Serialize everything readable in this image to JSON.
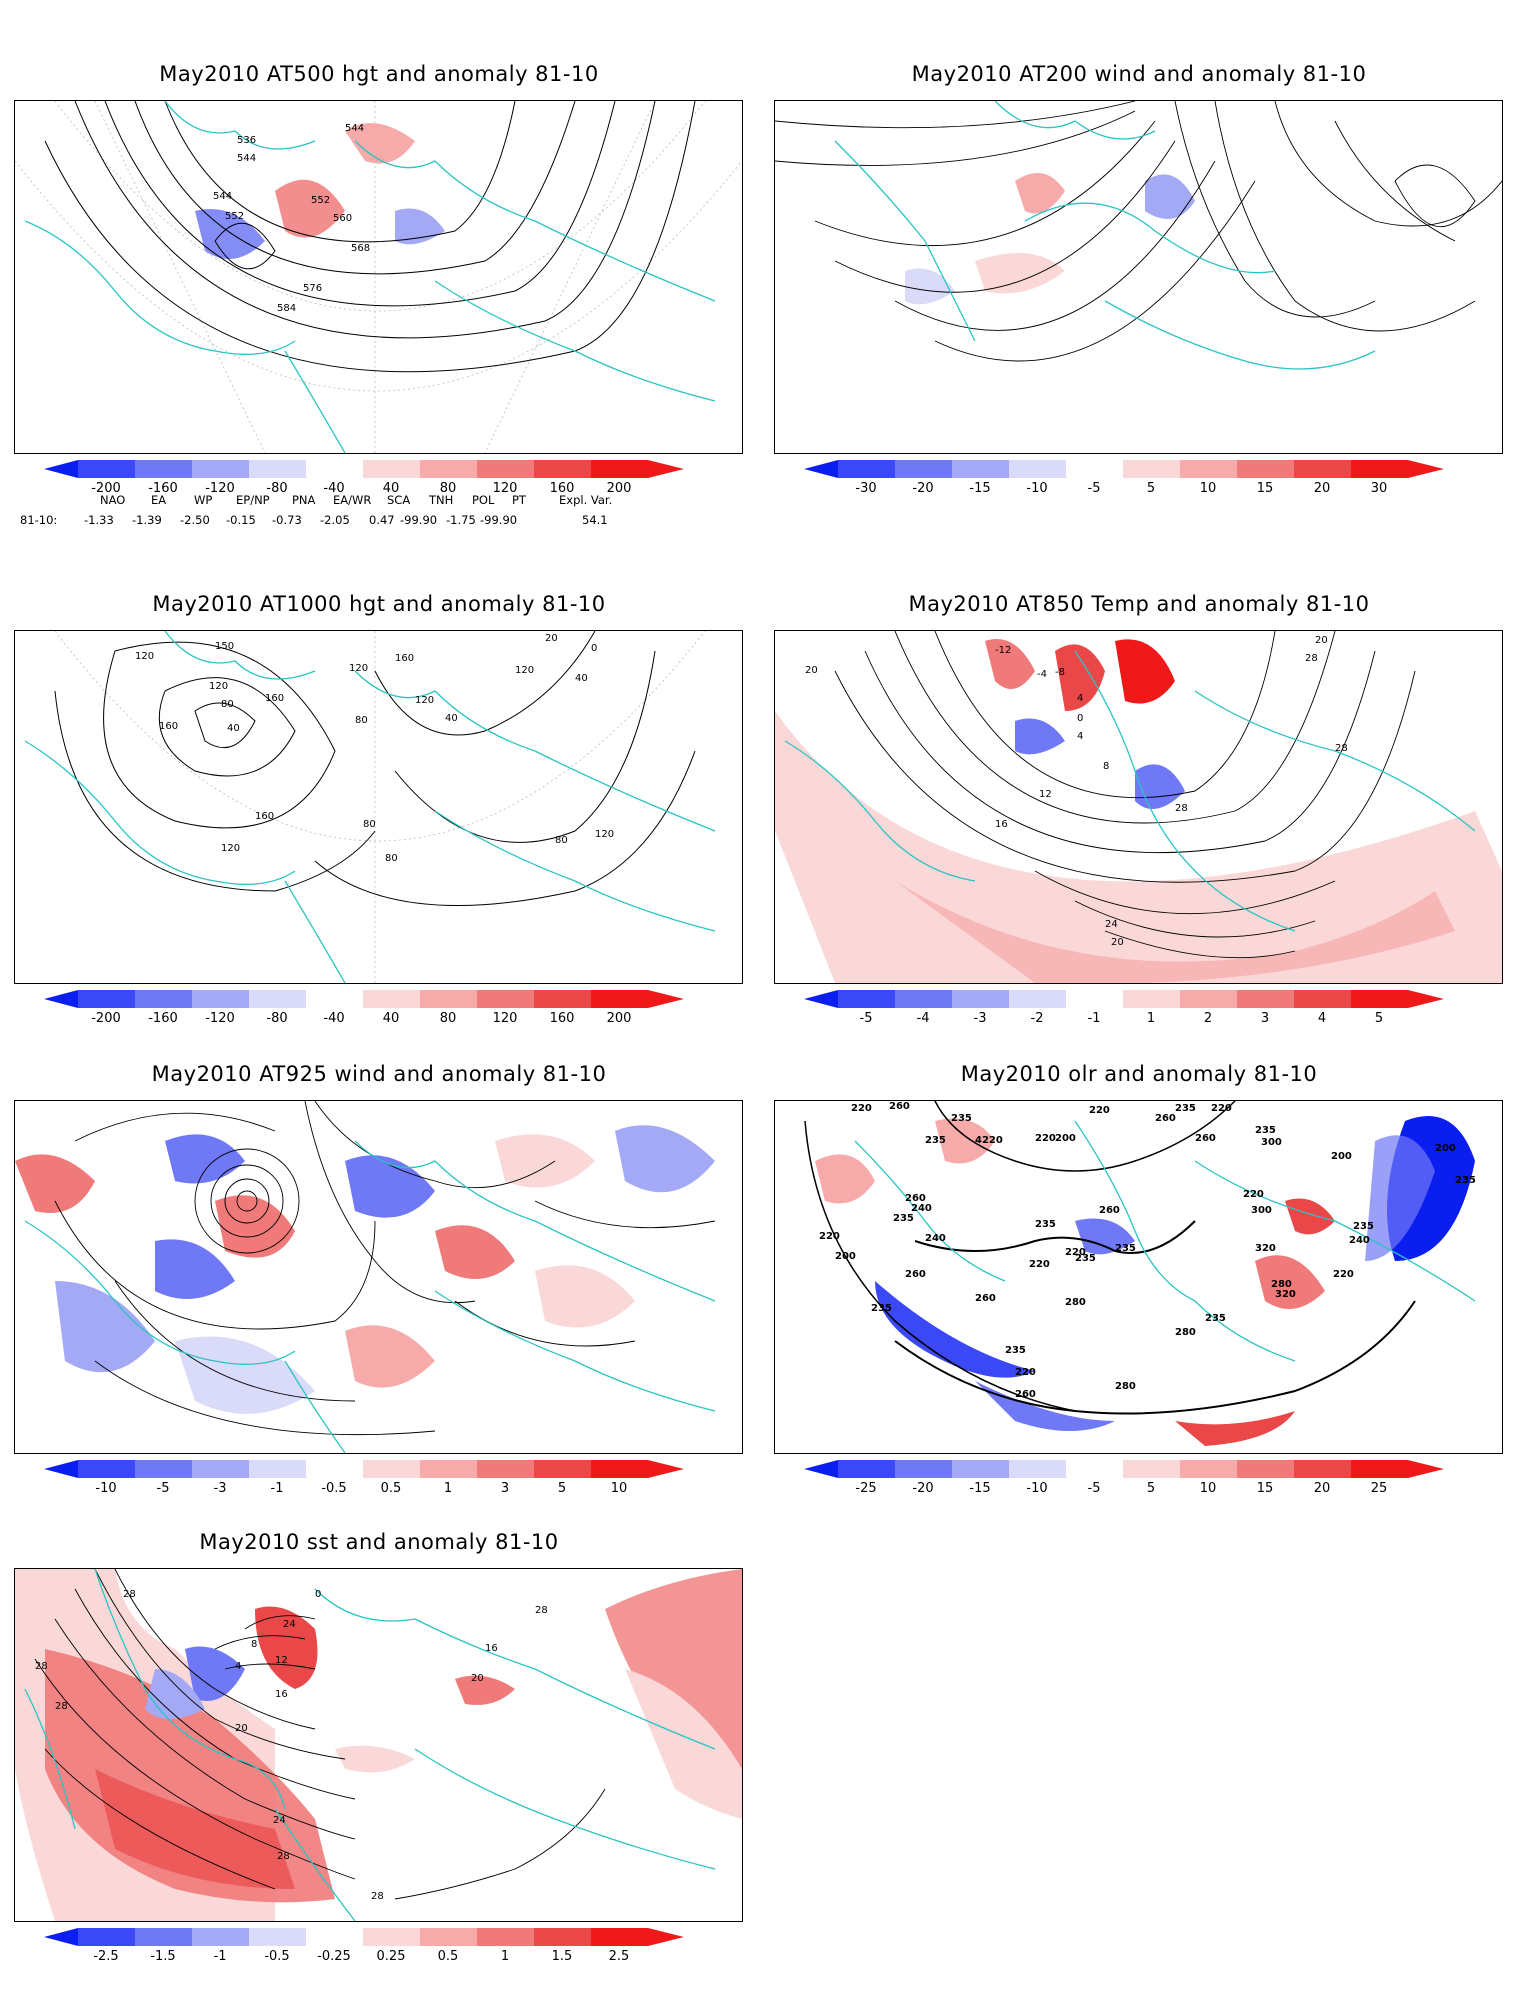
{
  "panels": [
    {
      "title": "May2010 AT500 hgt and anomaly 81-10",
      "colorbar": [
        "-200",
        "-160",
        "-120",
        "-80",
        "-40",
        "40",
        "80",
        "120",
        "160",
        "200"
      ],
      "contour_labels": [
        "536",
        "544",
        "544",
        "552",
        "552",
        "560",
        "568",
        "576",
        "584",
        "544",
        "544"
      ]
    },
    {
      "title": "May2010 AT200 wind and anomaly 81-10",
      "colorbar": [
        "-30",
        "-20",
        "-15",
        "-10",
        "-5",
        "5",
        "10",
        "15",
        "20",
        "30"
      ],
      "contour_labels": []
    },
    {
      "title": "May2010 AT1000 hgt and anomaly 81-10",
      "colorbar": [
        "-200",
        "-160",
        "-120",
        "-80",
        "-40",
        "40",
        "80",
        "120",
        "160",
        "200"
      ],
      "contour_labels": [
        "120",
        "150",
        "120",
        "80",
        "40",
        "160",
        "160",
        "120",
        "160",
        "120",
        "120",
        "80",
        "40",
        "120",
        "160",
        "80",
        "80",
        "120",
        "80",
        "120",
        "20",
        "0"
      ]
    },
    {
      "title": "May2010 AT850 Temp and anomaly 81-10",
      "colorbar": [
        "-5",
        "-4",
        "-3",
        "-2",
        "-1",
        "1",
        "2",
        "3",
        "4",
        "5"
      ],
      "contour_labels": [
        "20",
        "-12",
        "-8",
        "4",
        "0",
        "4",
        "8",
        "12",
        "16",
        "28",
        "24",
        "20",
        "28",
        "28",
        "20",
        "-4"
      ]
    },
    {
      "title": "May2010 AT925 wind and anomaly 81-10",
      "colorbar": [
        "-10",
        "-5",
        "-3",
        "-1",
        "-0.5",
        "0.5",
        "1",
        "3",
        "5",
        "10"
      ],
      "contour_labels": []
    },
    {
      "title": "May2010 olr and anomaly 81-10",
      "colorbar": [
        "-25",
        "-20",
        "-15",
        "-10",
        "-5",
        "5",
        "10",
        "15",
        "20",
        "25"
      ],
      "contour_labels": [
        "220",
        "260",
        "235",
        "235",
        "4220",
        "220",
        "220",
        "260",
        "240",
        "235",
        "220",
        "200",
        "200",
        "240",
        "260",
        "235",
        "235",
        "260",
        "220",
        "220",
        "235",
        "235",
        "220",
        "280",
        "235",
        "260",
        "300",
        "320",
        "320",
        "260",
        "280",
        "220",
        "240",
        "235",
        "220",
        "235",
        "200",
        "235",
        "200",
        "280",
        "235",
        "260",
        "220",
        "235",
        "260",
        "280",
        "300"
      ]
    },
    {
      "title": "May2010 sst and anomaly 81-10",
      "colorbar": [
        "-2.5",
        "-1.5",
        "-1",
        "-0.5",
        "-0.25",
        "0.25",
        "0.5",
        "1",
        "1.5",
        "2.5"
      ],
      "contour_labels": [
        "28",
        "28",
        "4",
        "8",
        "12",
        "0",
        "16",
        "20",
        "24",
        "28",
        "24",
        "28",
        "20",
        "16",
        "28",
        "28"
      ]
    }
  ],
  "teleconnections": {
    "headers": [
      "NAO",
      "EA",
      "WP",
      "EP/NP",
      "PNA",
      "EA/WR",
      "SCA",
      "TNH",
      "POL",
      "PT",
      "Expl. Var."
    ],
    "row_label": "81-10:",
    "values": [
      "-1.33",
      "-1.39",
      "-2.50",
      "-0.15",
      "-0.73",
      "-2.05",
      "0.47",
      "-99.90",
      "-1.75",
      "-99.90",
      "54.1"
    ]
  },
  "colors": {
    "coastline": "#2bc4c4",
    "blue_scale": [
      "#0b1ef0",
      "#3a48f5",
      "#6f78f5",
      "#a3a9f5",
      "#d9dbf8"
    ],
    "red_scale": [
      "#fbd8d8",
      "#f6aaaa",
      "#f07a7a",
      "#ea4848",
      "#f01818"
    ]
  }
}
